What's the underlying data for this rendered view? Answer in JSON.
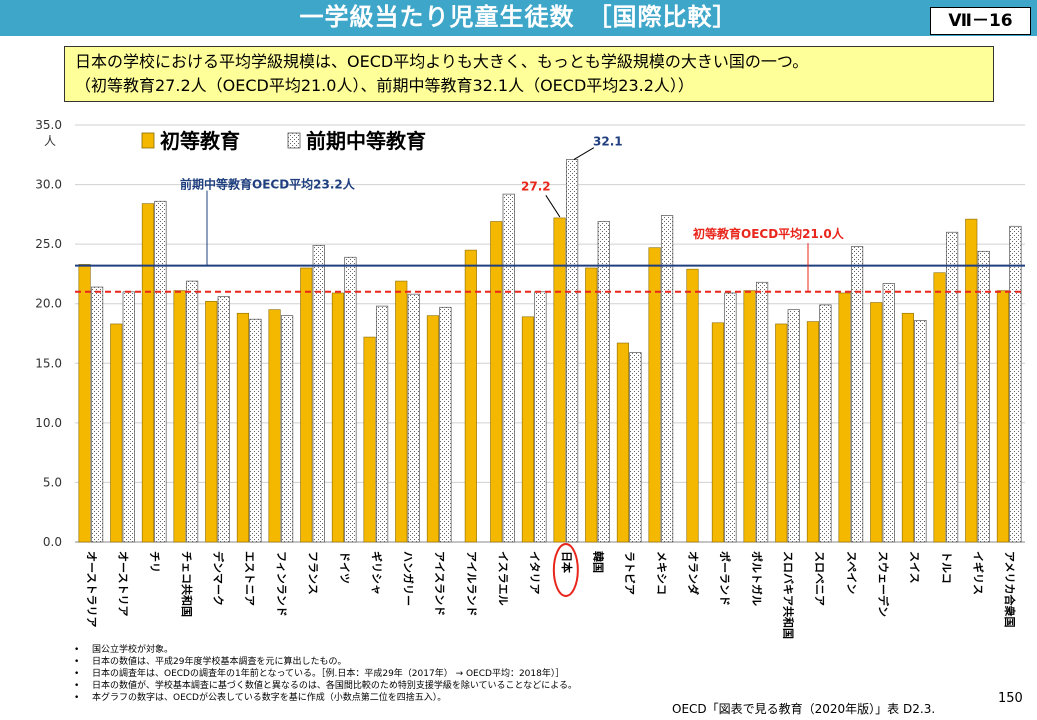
{
  "header": {
    "title": "一学級当たり児童生徒数　［国際比較］",
    "tag": "Ⅶ－16"
  },
  "summary": {
    "line1": "日本の学校における平均学級規模は、OECD平均よりも大きく、もっとも学級規模の大きい国の一つ。",
    "line2": "（初等教育27.2人（OECD平均21.0人）、前期中等教育32.1人（OECD平均23.2人））"
  },
  "colors": {
    "primary_bar": "#f5b800",
    "lower_secondary_fill": "#ffffff",
    "lower_secondary_pattern": "#666666",
    "lower_secondary_avg_line": "#1f3f7f",
    "primary_avg_line": "#e8261b",
    "header_bg": "#3ea6c9",
    "summary_bg": "#ffff99"
  },
  "chart_data": {
    "type": "bar",
    "ylabel": "人",
    "ylim": [
      0,
      35
    ],
    "yticks": [
      "0.0",
      "5.0",
      "10.0",
      "15.0",
      "20.0",
      "25.0",
      "30.0",
      "35.0"
    ],
    "grid": true,
    "legend_position": "top-left",
    "categories": [
      "オーストラリア",
      "オーストリア",
      "チリ",
      "チェコ共和国",
      "デンマーク",
      "エストニア",
      "フィンランド",
      "フランス",
      "ドイツ",
      "ギリシャ",
      "ハンガリー",
      "アイスランド",
      "アイルランド",
      "イスラエル",
      "イタリア",
      "日本",
      "韓国",
      "ラトビア",
      "メキシコ",
      "オランダ",
      "ポーランド",
      "ポルトガル",
      "スロバキア共和国",
      "スロベニア",
      "スペイン",
      "スウェーデン",
      "スイス",
      "トルコ",
      "イギリス",
      "アメリカ合衆国"
    ],
    "series": [
      {
        "name": "初等教育",
        "values": [
          23.3,
          18.3,
          28.4,
          21.1,
          20.2,
          19.2,
          19.5,
          23.0,
          20.9,
          17.2,
          21.9,
          19.0,
          24.5,
          26.9,
          18.9,
          27.2,
          23.0,
          16.7,
          24.7,
          22.9,
          18.4,
          21.1,
          18.3,
          18.5,
          20.9,
          20.1,
          19.2,
          22.6,
          27.1,
          21.1
        ]
      },
      {
        "name": "前期中等教育",
        "values": [
          21.4,
          21.0,
          28.6,
          21.9,
          20.6,
          18.7,
          19.0,
          24.9,
          23.9,
          19.8,
          20.8,
          19.7,
          null,
          29.2,
          21.0,
          32.1,
          26.9,
          15.9,
          27.4,
          null,
          20.9,
          21.8,
          19.5,
          19.9,
          24.8,
          21.7,
          18.6,
          26.0,
          24.4,
          26.5
        ]
      }
    ],
    "reference_lines": [
      {
        "label": "前期中等教育OECD平均23.2人",
        "value": 23.2,
        "style": "solid"
      },
      {
        "label": "初等教育OECD平均21.0人",
        "value": 21.0,
        "style": "dashed"
      }
    ],
    "annotations": [
      {
        "text": "27.2",
        "category": "日本",
        "series": "初等教育"
      },
      {
        "text": "32.1",
        "category": "日本",
        "series": "前期中等教育"
      }
    ],
    "highlight_category": "日本"
  },
  "notes": [
    "国公立学校が対象。",
    "日本の数値は、平成29年度学校基本調査を元に算出したもの。",
    "日本の調査年は、OECDの調査年の1年前となっている。［例.日本：平成29年（2017年） → OECD平均：2018年）］",
    "日本の数値が、学校基本調査に基づく数値と異なるのは、各国間比較のため特別支援学級を除いていることなどによる。",
    "本グラフの数字は、OECDが公表している数字を基に作成（小数点第二位を四捨五入）。"
  ],
  "source": "OECD「図表で見る教育（2020年版）」表 D2.3.",
  "page_number": "150"
}
